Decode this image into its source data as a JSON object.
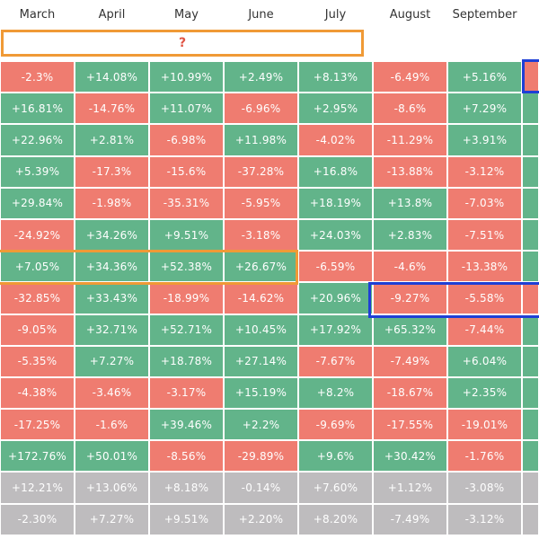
{
  "months": [
    "March",
    "April",
    "May",
    "June",
    "July",
    "August",
    "September"
  ],
  "question_mark": "?",
  "colors": {
    "positive": "#62b48a",
    "negative": "#ef7c70",
    "summary": "#bebcbe",
    "highlight_orange": "#f09a36",
    "highlight_blue": "#1f3fd6"
  },
  "rows": [
    {
      "kind": "data",
      "values": [
        "-2.3%",
        "+14.08%",
        "+10.99%",
        "+2.49%",
        "+8.13%",
        "-6.49%",
        "+5.16%",
        ""
      ],
      "edge": "neg"
    },
    {
      "kind": "data",
      "values": [
        "+16.81%",
        "-14.76%",
        "+11.07%",
        "-6.96%",
        "+2.95%",
        "-8.6%",
        "+7.29%",
        ""
      ],
      "edge": "pos"
    },
    {
      "kind": "data",
      "values": [
        "+22.96%",
        "+2.81%",
        "-6.98%",
        "+11.98%",
        "-4.02%",
        "-11.29%",
        "+3.91%",
        ""
      ],
      "edge": "pos"
    },
    {
      "kind": "data",
      "values": [
        "+5.39%",
        "-17.3%",
        "-15.6%",
        "-37.28%",
        "+16.8%",
        "-13.88%",
        "-3.12%",
        ""
      ],
      "edge": "pos"
    },
    {
      "kind": "data",
      "values": [
        "+29.84%",
        "-1.98%",
        "-35.31%",
        "-5.95%",
        "+18.19%",
        "+13.8%",
        "-7.03%",
        ""
      ],
      "edge": "pos"
    },
    {
      "kind": "data",
      "values": [
        "-24.92%",
        "+34.26%",
        "+9.51%",
        "-3.18%",
        "+24.03%",
        "+2.83%",
        "-7.51%",
        ""
      ],
      "edge": "pos"
    },
    {
      "kind": "data",
      "values": [
        "+7.05%",
        "+34.36%",
        "+52.38%",
        "+26.67%",
        "-6.59%",
        "-4.6%",
        "-13.38%",
        ""
      ],
      "edge": "pos"
    },
    {
      "kind": "data",
      "values": [
        "-32.85%",
        "+33.43%",
        "-18.99%",
        "-14.62%",
        "+20.96%",
        "-9.27%",
        "-5.58%",
        ""
      ],
      "edge": "neg"
    },
    {
      "kind": "data",
      "values": [
        "-9.05%",
        "+32.71%",
        "+52.71%",
        "+10.45%",
        "+17.92%",
        "+65.32%",
        "-7.44%",
        ""
      ],
      "edge": "pos"
    },
    {
      "kind": "data",
      "values": [
        "-5.35%",
        "+7.27%",
        "+18.78%",
        "+27.14%",
        "-7.67%",
        "-7.49%",
        "+6.04%",
        ""
      ],
      "edge": "pos"
    },
    {
      "kind": "data",
      "values": [
        "-4.38%",
        "-3.46%",
        "-3.17%",
        "+15.19%",
        "+8.2%",
        "-18.67%",
        "+2.35%",
        ""
      ],
      "edge": "pos"
    },
    {
      "kind": "data",
      "values": [
        "-17.25%",
        "-1.6%",
        "+39.46%",
        "+2.2%",
        "-9.69%",
        "-17.55%",
        "-19.01%",
        ""
      ],
      "edge": "pos"
    },
    {
      "kind": "data",
      "values": [
        "+172.76%",
        "+50.01%",
        "-8.56%",
        "-29.89%",
        "+9.6%",
        "+30.42%",
        "-1.76%",
        ""
      ],
      "edge": "pos"
    },
    {
      "kind": "summary",
      "values": [
        "+12.21%",
        "+13.06%",
        "+8.18%",
        "-0.14%",
        "+7.60%",
        "+1.12%",
        "-3.08%",
        ""
      ],
      "edge": "sum"
    },
    {
      "kind": "summary",
      "values": [
        "-2.30%",
        "+7.27%",
        "+9.51%",
        "+2.20%",
        "+8.20%",
        "-7.49%",
        "-3.12%",
        ""
      ],
      "edge": "sum"
    }
  ]
}
